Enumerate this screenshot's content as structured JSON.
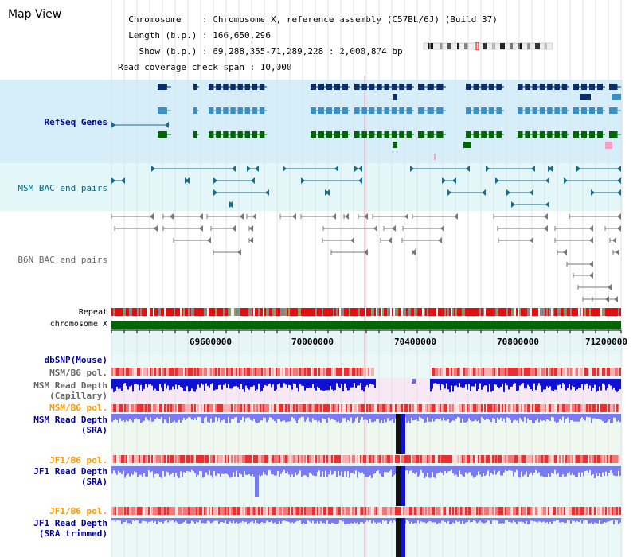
{
  "page": {
    "title": "Map View"
  },
  "info": {
    "lines": [
      "  Chromosome    : Chromosome X, reference assembly (C57BL/6J) (Build 37)",
      "  Length (b.p.) : 166,650,296",
      "    Show (b.p.) : 69,288,355-71,289,228 : 2,000,874 bp",
      "Read coverage check span : 10,000"
    ]
  },
  "tracks": {
    "refseq": "RefSeq Genes",
    "msm_bac": "MSM BAC end pairs",
    "b6n_bac": "B6N BAC end pairs",
    "repeat": "Repeat",
    "chromosome": "chromosome X",
    "dbsnp": "dbSNP(Mouse)",
    "msm_b6_pol_1": "MSM/B6 pol.",
    "msm_depth_cap": "MSM Read Depth\n   (Capillary)",
    "msm_b6_pol_2": "MSM/B6 pol.",
    "msm_depth_sra": "MSM Read Depth\n        (SRA)",
    "jf1_b6_pol_1": "JF1/B6 pol.",
    "jf1_depth_sra": "JF1 Read Depth\n        (SRA)",
    "jf1_b6_pol_2": "JF1/B6 pol.",
    "jf1_depth_trim": "JF1 Read Depth\n(SRA trimmed)"
  },
  "axis": {
    "ticks": [
      "69600000",
      "70000000",
      "70400000",
      "70800000",
      "71200000"
    ]
  },
  "colors": {
    "gene_dark": "#0a2d6e",
    "gene_mid": "#3a8fbf",
    "gene_green": "#006600",
    "msm_line": "#1a6a8a",
    "b6n_line": "#777777",
    "label_blue": "#000099",
    "label_teal": "#006a80",
    "label_gray": "#666666",
    "label_orange": "#ff9900",
    "depth_blue": "#1010d0",
    "depth_lavender": "#7b7bf0",
    "pol_red": "#ee2222",
    "chrom_green": "#006600"
  }
}
